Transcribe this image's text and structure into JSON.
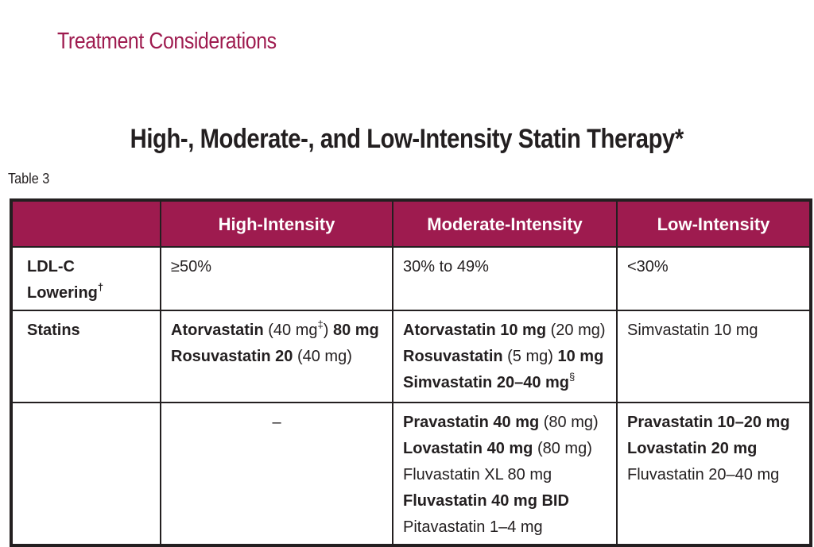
{
  "section_title": "Treatment Considerations",
  "table_title": "High-, Moderate-, and Low-Intensity Statin Therapy*",
  "table_label": "Table 3",
  "headers": {
    "corner": "",
    "high": "High-Intensity",
    "moderate": "Moderate-Intensity",
    "low": "Low-Intensity"
  },
  "rows": {
    "ldl": {
      "label": "LDL-C Lowering",
      "label_sup": "†",
      "high": "≥50%",
      "moderate": "30% to 49%",
      "low": "<30%"
    },
    "statins": {
      "label": "Statins",
      "high": {
        "l1_bold_a": "Atorvastatin",
        "l1_norm_a": " (40 mg",
        "l1_sup": "‡",
        "l1_norm_b": ") ",
        "l1_bold_b": "80 mg",
        "l2_bold_a": "Rosuvastatin 20",
        "l2_norm_a": " (40 mg)"
      },
      "moderate": {
        "l1_bold_a": "Atorvastatin 10 mg",
        "l1_norm_a": " (20 mg)",
        "l2_bold_a": "Rosuvastatin",
        "l2_norm_a": " (5 mg) ",
        "l2_bold_b": "10 mg",
        "l3_bold_a": "Simvastatin 20–40 mg",
        "l3_sup": "§"
      },
      "low": {
        "l1_norm_a": "Simvastatin 10 mg"
      }
    },
    "other": {
      "label": "",
      "high": "–",
      "moderate": {
        "l1_bold_a": "Pravastatin 40 mg",
        "l1_norm_a": " (80 mg)",
        "l2_bold_a": "Lovastatin 40 mg",
        "l2_norm_a": " (80 mg)",
        "l3_norm_a": "Fluvastatin XL 80 mg",
        "l4_bold_a": "Fluvastatin 40 mg BID",
        "l5_norm_a": "Pitavastatin 1–4 mg"
      },
      "low": {
        "l1_bold_a": "Pravastatin 10–20 mg",
        "l2_bold_a": "Lovastatin 20 mg",
        "l3_norm_a": "Fluvastatin 20–40 mg"
      }
    }
  },
  "colors": {
    "accent": "#9e1b4f",
    "text": "#231f20",
    "header_text": "#ffffff"
  }
}
